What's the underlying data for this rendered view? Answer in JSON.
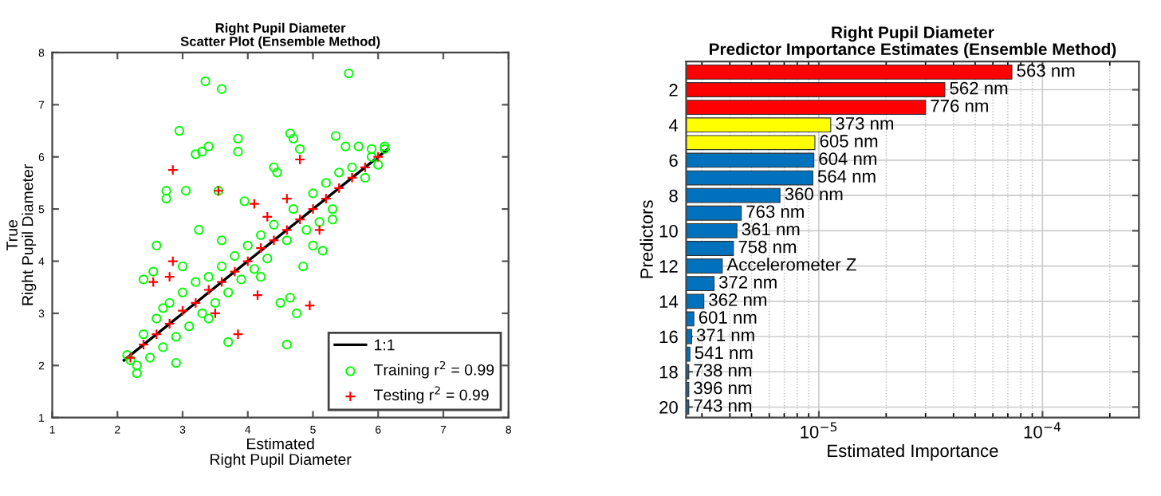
{
  "chart_data": [
    {
      "type": "scatter",
      "title": "Right Pupil Diameter\nScatter Plot (Ensemble Method)",
      "xlabel": "Estimated\nRight Pupil Diameter",
      "ylabel": "True\nRight Pupil Diameter",
      "xlim": [
        1,
        8
      ],
      "ylim": [
        1,
        8
      ],
      "xticks": [
        1,
        2,
        3,
        4,
        5,
        6,
        7,
        8
      ],
      "yticks": [
        1,
        2,
        3,
        4,
        5,
        6,
        7,
        8
      ],
      "grid": false,
      "legend": "bottom right",
      "series": [
        {
          "name": "1:1",
          "type": "line",
          "color": "#000000",
          "marker": "none",
          "line_style": "solid",
          "x": [
            2.1,
            6.15
          ],
          "values": [
            2.1,
            6.15
          ]
        },
        {
          "name": "Training r$^{2}$ = 0.99",
          "type": "scatter",
          "color": "#00ff00",
          "marker": "circle",
          "x": [
            3.35,
            3.6,
            5.55,
            2.95,
            3.4,
            3.3,
            3.2,
            3.85,
            3.85,
            4.65,
            4.7,
            4.8,
            5.35,
            2.75,
            3.05,
            2.75,
            3.55,
            3.95,
            4.4,
            4.45,
            3.25,
            2.6,
            2.4,
            2.55,
            4.6,
            4.75,
            4.65,
            4.5,
            3.7,
            2.3,
            2.9,
            5.5,
            5.7,
            5.9,
            6.1,
            6.0,
            5.8,
            5.3,
            5.1,
            4.9,
            4.6,
            4.3,
            4.1,
            3.9,
            3.7,
            3.5,
            3.3,
            3.1,
            2.9,
            2.7,
            2.5,
            2.3,
            2.2,
            2.15,
            2.4,
            2.6,
            2.8,
            3.0,
            3.2,
            3.4,
            3.6,
            3.8,
            4.0,
            4.2,
            4.4,
            4.7,
            5.0,
            5.2,
            5.4,
            5.6,
            5.9,
            6.1,
            3.0,
            3.6,
            4.2,
            5.0,
            5.3,
            2.7,
            3.4,
            4.85,
            5.15
          ],
          "values": [
            7.45,
            7.3,
            7.6,
            6.5,
            6.2,
            6.1,
            6.05,
            6.35,
            6.1,
            6.45,
            6.35,
            6.15,
            6.4,
            5.35,
            5.35,
            5.2,
            5.35,
            5.15,
            5.8,
            5.7,
            4.6,
            4.3,
            3.65,
            3.8,
            2.4,
            3.0,
            3.3,
            3.2,
            2.45,
            1.85,
            2.05,
            6.2,
            6.2,
            6.15,
            6.15,
            5.85,
            5.6,
            5.0,
            4.75,
            4.6,
            4.4,
            4.05,
            3.85,
            3.65,
            3.4,
            3.2,
            3.0,
            2.75,
            2.55,
            2.35,
            2.15,
            2.0,
            2.1,
            2.2,
            2.6,
            2.9,
            3.2,
            3.4,
            3.6,
            3.7,
            3.9,
            4.1,
            4.3,
            4.5,
            4.7,
            5.0,
            5.3,
            5.5,
            5.7,
            5.8,
            6.0,
            6.2,
            3.9,
            4.4,
            3.7,
            4.3,
            4.8,
            3.1,
            2.9,
            3.9,
            4.2
          ]
        },
        {
          "name": "Testing r$^{2}$ = 0.99",
          "type": "scatter",
          "color": "#ff0000",
          "marker": "cross",
          "x": [
            2.85,
            3.55,
            4.8,
            4.95,
            3.85,
            4.15,
            2.85,
            2.55,
            4.1,
            4.3,
            2.8,
            2.2,
            2.4,
            2.6,
            2.8,
            3.0,
            3.2,
            3.4,
            3.6,
            3.8,
            4.0,
            4.2,
            4.4,
            4.6,
            4.8,
            5.0,
            5.2,
            5.4,
            5.6,
            5.8,
            6.0,
            3.5,
            4.6,
            5.1
          ],
          "values": [
            5.75,
            5.35,
            5.95,
            3.15,
            2.6,
            3.35,
            4.0,
            3.6,
            5.1,
            4.85,
            3.7,
            2.15,
            2.4,
            2.6,
            2.8,
            3.05,
            3.2,
            3.45,
            3.6,
            3.8,
            4.0,
            4.25,
            4.4,
            4.6,
            4.8,
            5.0,
            5.2,
            5.4,
            5.6,
            5.8,
            6.0,
            3.0,
            5.2,
            4.6
          ]
        }
      ]
    },
    {
      "type": "bar",
      "orientation": "horizontal",
      "title": "Right Pupil Diameter\nPredictor Importance Estimates (Ensemble Method)",
      "xlabel": "Estimated Importance",
      "ylabel": "Predictors",
      "log": "x",
      "grid": true,
      "xlim": [
        2.55e-06,
        0.00027
      ],
      "xticks": [
        {
          "value": 1e-05,
          "label": "10$^{−5}$"
        },
        {
          "value": 0.0001,
          "label": "10$^{−4}$"
        }
      ],
      "ylim": [
        20.6,
        0.4
      ],
      "yticks": [
        2,
        4,
        6,
        8,
        10,
        12,
        14,
        16,
        18,
        20
      ],
      "x": [
        1,
        2,
        3,
        4,
        5,
        6,
        7,
        8,
        9,
        10,
        11,
        12,
        13,
        14,
        15,
        16,
        17,
        18,
        19,
        20
      ],
      "values": [
        7.3e-05,
        3.66e-05,
        3e-05,
        1.13e-05,
        9.6e-06,
        9.5e-06,
        9.4e-06,
        6.7e-06,
        4.5e-06,
        4.3e-06,
        4.15e-06,
        3.7e-06,
        3.4e-06,
        3.06e-06,
        2.76e-06,
        2.7e-06,
        2.65e-06,
        2.62e-06,
        2.62e-06,
        2.62e-06
      ],
      "colors": [
        "#ff0000",
        "#ff0000",
        "#ff0000",
        "#ffff00",
        "#ffff00",
        "#0072bd",
        "#0072bd",
        "#0072bd",
        "#0072bd",
        "#0072bd",
        "#0072bd",
        "#0072bd",
        "#0072bd",
        "#0072bd",
        "#0072bd",
        "#0072bd",
        "#0072bd",
        "#0072bd",
        "#0072bd",
        "#0072bd"
      ],
      "annotations": [
        {
          "text": "563 nm",
          "x": 7.3e-05,
          "y": 1
        },
        {
          "text": "562 nm",
          "x": 3.66e-05,
          "y": 2
        },
        {
          "text": "776 nm",
          "x": 3e-05,
          "y": 3
        },
        {
          "text": "373 nm",
          "x": 1.13e-05,
          "y": 4
        },
        {
          "text": "605 nm",
          "x": 9.6e-06,
          "y": 5
        },
        {
          "text": "604 nm",
          "x": 9.5e-06,
          "y": 6
        },
        {
          "text": "564 nm",
          "x": 9.4e-06,
          "y": 7
        },
        {
          "text": "360 nm",
          "x": 6.7e-06,
          "y": 8
        },
        {
          "text": "763 nm",
          "x": 4.5e-06,
          "y": 9
        },
        {
          "text": "361 nm",
          "x": 4.3e-06,
          "y": 10
        },
        {
          "text": "758 nm",
          "x": 4.15e-06,
          "y": 11
        },
        {
          "text": "Accelerometer Z",
          "x": 3.7e-06,
          "y": 12
        },
        {
          "text": "372 nm",
          "x": 3.4e-06,
          "y": 13
        },
        {
          "text": "362 nm",
          "x": 3.06e-06,
          "y": 14
        },
        {
          "text": "601 nm",
          "x": 2.76e-06,
          "y": 15
        },
        {
          "text": "371 nm",
          "x": 2.7e-06,
          "y": 16
        },
        {
          "text": "541 nm",
          "x": 2.65e-06,
          "y": 17
        },
        {
          "text": "738 nm",
          "x": 2.62e-06,
          "y": 18
        },
        {
          "text": "396 nm",
          "x": 2.62e-06,
          "y": 19
        },
        {
          "text": "743 nm",
          "x": 2.62e-06,
          "y": 20
        }
      ]
    }
  ]
}
